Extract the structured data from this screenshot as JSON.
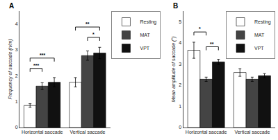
{
  "chart_data": [
    {
      "type": "bar",
      "title": "A",
      "ylabel": "Frequency of saccade (n/m)",
      "categories": [
        "Horizontal saccade",
        "Vertical saccade"
      ],
      "series": [
        {
          "name": "Resting",
          "color": "#ffffff",
          "values": [
            0.85,
            1.75
          ],
          "errors": [
            0.07,
            0.18
          ]
        },
        {
          "name": "MAT",
          "color": "#444444",
          "values": [
            1.6,
            2.78
          ],
          "errors": [
            0.13,
            0.18
          ]
        },
        {
          "name": "VPT",
          "color": "#111111",
          "values": [
            1.75,
            2.88
          ],
          "errors": [
            0.18,
            0.22
          ]
        }
      ],
      "ylim": [
        0,
        4.5
      ],
      "yticks": [
        0,
        1,
        2,
        3,
        4
      ],
      "grid": false,
      "legend": "right",
      "brackets": [
        {
          "label": "***",
          "category": "Horizontal saccade",
          "from": "Resting",
          "to": "MAT",
          "y": 2.15
        },
        {
          "label": "***",
          "category": "Horizontal saccade",
          "from": "Resting",
          "to": "VPT",
          "y": 2.55
        },
        {
          "label": "*",
          "category": "Vertical saccade",
          "from": "MAT",
          "to": "VPT",
          "y": 3.35
        },
        {
          "label": "**",
          "category": "Vertical saccade",
          "from": "Resting",
          "to": "VPT",
          "y": 3.75
        }
      ]
    },
    {
      "type": "bar",
      "title": "B",
      "ylabel": "Mean amplitude of saccade (°)",
      "categories": [
        "Horizontal saccade",
        "Vertical saccade"
      ],
      "series": [
        {
          "name": "Resting",
          "color": "#ffffff",
          "values": [
            3.65,
            2.6
          ],
          "errors": [
            0.38,
            0.18
          ]
        },
        {
          "name": "MAT",
          "color": "#444444",
          "values": [
            2.28,
            2.28
          ],
          "errors": [
            0.1,
            0.1
          ]
        },
        {
          "name": "VPT",
          "color": "#111111",
          "values": [
            3.1,
            2.45
          ],
          "errors": [
            0.12,
            0.1
          ]
        }
      ],
      "ylim": [
        0,
        5.5
      ],
      "yticks": [
        0,
        1,
        2,
        3,
        4,
        5
      ],
      "grid": false,
      "legend": "upper right",
      "brackets": [
        {
          "label": "*",
          "category": "Horizontal saccade",
          "from": "Resting",
          "to": "MAT",
          "y": 4.35
        },
        {
          "label": "**",
          "category": "Horizontal saccade",
          "from": "MAT",
          "to": "VPT",
          "y": 3.65
        }
      ]
    }
  ]
}
